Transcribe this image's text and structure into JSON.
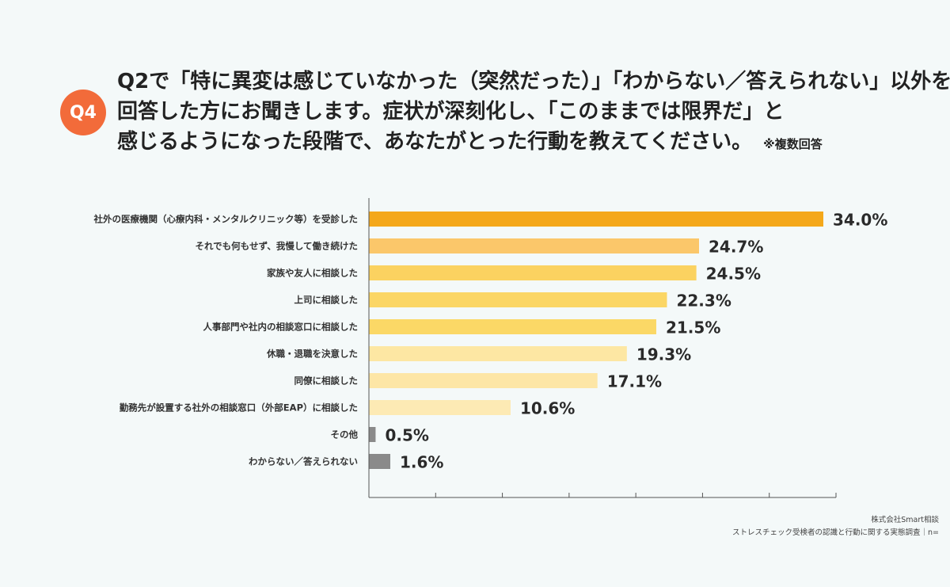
{
  "badge": "Q4",
  "question": {
    "line1": "Q2で「特に異変は感じていなかった（突然だった）」「わからない／答えられない」以外を",
    "line2": "回答した方にお聞きします。症状が深刻化し、「このままでは限界だ」と",
    "line3": "感じるようになった段階で、あなたがとった行動を教えてください。",
    "note": "※複数回答"
  },
  "source": {
    "company": "株式会社Smart相談",
    "survey": "ストレスチェック受検者の認識と行動に関する実態調査｜n="
  },
  "chart_data": {
    "type": "bar",
    "orientation": "horizontal",
    "categories": [
      "社外の医療機関（心療内科・メンタルクリニック等）を受診した",
      "それでも何もせず、我慢して働き続けた",
      "家族や友人に相談した",
      "上司に相談した",
      "人事部門や社内の相談窓口に相談した",
      "休職・退職を決意した",
      "同僚に相談した",
      "勤務先が設置する社外の相談窓口（外部EAP）に相談した",
      "その他",
      "わからない／答えられない"
    ],
    "values": [
      34.0,
      24.7,
      24.5,
      22.3,
      21.5,
      19.3,
      17.1,
      10.6,
      0.5,
      1.6
    ],
    "value_labels": [
      "34.0%",
      "24.7%",
      "24.5%",
      "22.3%",
      "21.5%",
      "19.3%",
      "17.1%",
      "10.6%",
      "0.5%",
      "1.6%"
    ],
    "colors": [
      "#f4a81a",
      "#fbc76a",
      "#fbd260",
      "#fbd665",
      "#fbd866",
      "#fde7a3",
      "#fde6a6",
      "#fdeab4",
      "#8a8a8a",
      "#8a8a8a"
    ],
    "xlim": [
      0,
      35
    ],
    "grid": false
  }
}
